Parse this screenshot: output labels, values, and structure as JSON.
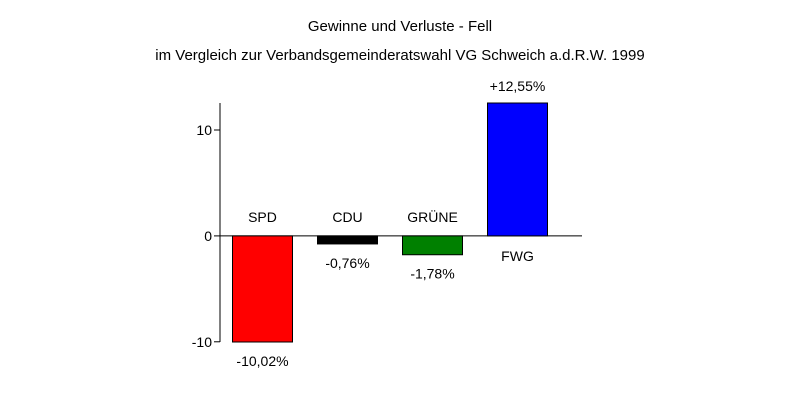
{
  "chart_data": {
    "type": "bar",
    "title": "Gewinne und Verluste - Fell",
    "subtitle": "im Vergleich zur Verbandsgemeinderatswahl VG Schweich a.d.R.W. 1999",
    "categories": [
      "SPD",
      "CDU",
      "GRÜNE",
      "FWG"
    ],
    "values": [
      -10.02,
      -0.76,
      -1.78,
      12.55
    ],
    "value_labels": [
      "-10,02%",
      "-0,76%",
      "-1,78%",
      "+12,55%"
    ],
    "colors": [
      "#ff0000",
      "#000000",
      "#008000",
      "#0000ff"
    ],
    "yticks": [
      10,
      0,
      -10
    ],
    "ytick_labels": [
      "10",
      "0",
      "-10"
    ],
    "ylim": [
      -10.02,
      12.55
    ],
    "xlabel": "",
    "ylabel": "",
    "grid": false,
    "legend": "none"
  }
}
